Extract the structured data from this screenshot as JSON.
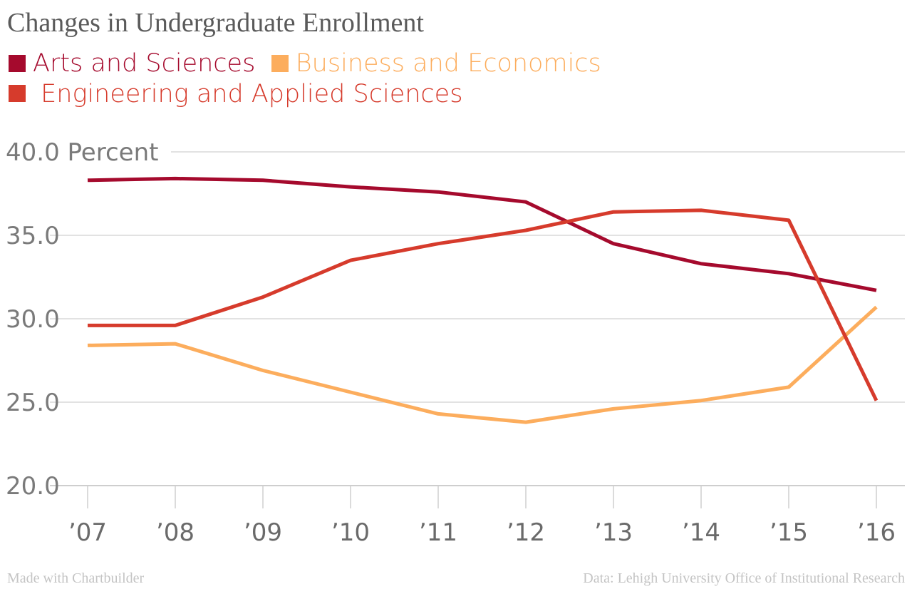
{
  "chart_data": {
    "type": "line",
    "title": "Changes in Undergraduate Enrollment",
    "y_unit_label": "Percent",
    "categories": [
      "’07",
      "’08",
      "’09",
      "’10",
      "’11",
      "’12",
      "’13",
      "’14",
      "’15",
      "’16"
    ],
    "ylim": [
      20.0,
      40.0
    ],
    "y_ticks": [
      "20.0",
      "25.0",
      "30.0",
      "35.0",
      "40.0"
    ],
    "grid": true,
    "legend_position": "top-left",
    "series": [
      {
        "name": "Arts and Sciences",
        "color": "#a50a2d",
        "values": [
          38.3,
          38.4,
          38.3,
          37.9,
          37.6,
          37.0,
          34.5,
          33.3,
          32.7,
          31.7
        ]
      },
      {
        "name": "Business and Economics",
        "color": "#fcad5d",
        "values": [
          28.4,
          28.5,
          26.9,
          25.6,
          24.3,
          23.8,
          24.6,
          25.1,
          25.9,
          30.7
        ]
      },
      {
        "name": "Engineering and Applied Sciences",
        "color": "#d63b2c",
        "values": [
          29.6,
          29.6,
          31.3,
          33.5,
          34.5,
          35.3,
          36.4,
          36.5,
          35.9,
          25.1
        ]
      }
    ]
  },
  "footer": {
    "credit": "Made with Chartbuilder",
    "source": "Data: Lehigh University Office of Institutional Research"
  }
}
